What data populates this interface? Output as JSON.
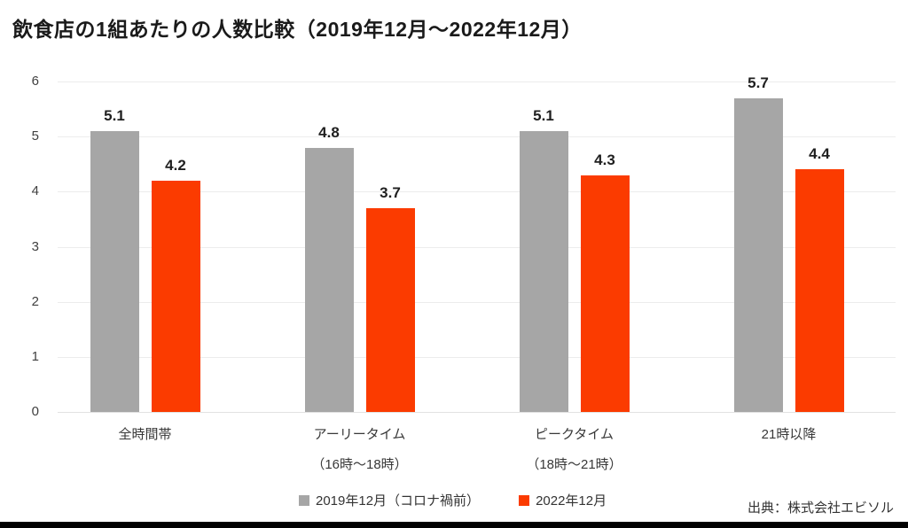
{
  "title": "飲食店の1組あたりの人数比較（2019年12月～2022年12月）",
  "source": "出典：株式会社エビソル",
  "colors": {
    "series_2019": "#a6a6a6",
    "series_2022": "#fb3b00",
    "gridline": "#ececec",
    "background": "#ffffff",
    "bottom_bar": "#000000"
  },
  "chart_data": {
    "type": "bar",
    "title": "飲食店の1組あたりの人数比較（2019年12月～2022年12月）",
    "categories": [
      "全時間帯",
      "アーリータイム",
      "ピークタイム",
      "21時以降"
    ],
    "category_sublabels": [
      "",
      "（16時～18時）",
      "（18時～21時）",
      ""
    ],
    "series": [
      {
        "name": "2019年12月（コロナ禍前）",
        "color": "#a6a6a6",
        "values": [
          5.1,
          4.8,
          5.1,
          5.7
        ]
      },
      {
        "name": "2022年12月",
        "color": "#fb3b00",
        "values": [
          4.2,
          3.7,
          4.3,
          4.4
        ]
      }
    ],
    "xlabel": "",
    "ylabel": "",
    "ylim": [
      0,
      6
    ],
    "yticks": [
      0,
      1,
      2,
      3,
      4,
      5,
      6
    ],
    "grid": true,
    "legend_position": "bottom"
  }
}
